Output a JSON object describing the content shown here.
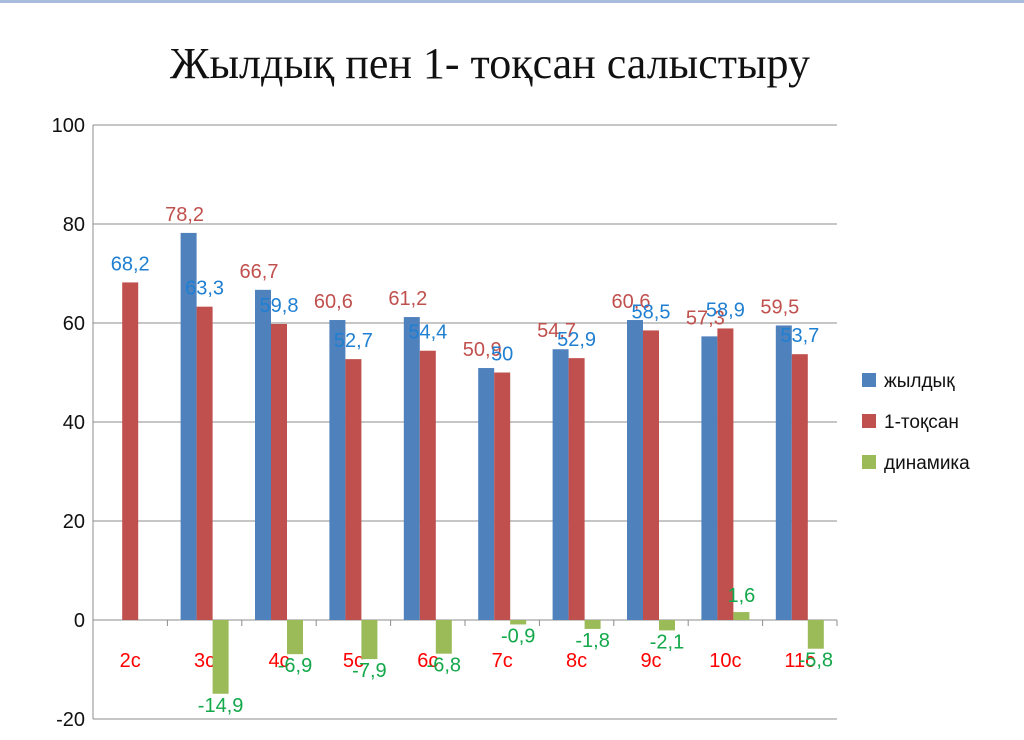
{
  "chart_data": {
    "type": "bar",
    "title": "Жылдық пен 1- тоқсан салыстыру",
    "categories": [
      "2с",
      "3с",
      "4с",
      "5с",
      "6с",
      "7с",
      "8с",
      "9с",
      "10с",
      "11с"
    ],
    "series": [
      {
        "name": "жылдық",
        "color": "#4f81bd",
        "label_color": "#c0504d",
        "values": [
          null,
          78.2,
          66.7,
          60.6,
          61.2,
          50.9,
          54.7,
          60.6,
          57.3,
          59.5
        ],
        "labels": [
          "",
          "78,2",
          "66,7",
          "60,6",
          "61,2",
          "50,9",
          "54,7",
          "60,6",
          "57,3",
          "59,5"
        ]
      },
      {
        "name": "1-тоқсан",
        "color": "#c0504d",
        "label_color": "#1f7fd1",
        "values": [
          68.2,
          63.3,
          59.8,
          52.7,
          54.4,
          50,
          52.9,
          58.5,
          58.9,
          53.7
        ],
        "labels": [
          "68,2",
          "63,3",
          "59,8",
          "52,7",
          "54,4",
          "50",
          "52,9",
          "58,5",
          "58,9",
          "53,7"
        ]
      },
      {
        "name": "динамика",
        "color": "#9bbb59",
        "label_color": "#13a84a",
        "values": [
          null,
          -14.9,
          -6.9,
          -7.9,
          -6.8,
          -0.9,
          -1.8,
          -2.1,
          1.6,
          -5.8
        ],
        "labels": [
          "",
          "-14,9",
          "-6,9",
          "-7,9",
          "-6,8",
          "-0,9",
          "-1,8",
          "-2,1",
          "1,6",
          "-5,8"
        ]
      }
    ],
    "ylim": [
      -20,
      100
    ],
    "yticks": [
      "-20",
      "0",
      "20",
      "40",
      "60",
      "80",
      "100"
    ],
    "grid": true,
    "legend": "right"
  }
}
